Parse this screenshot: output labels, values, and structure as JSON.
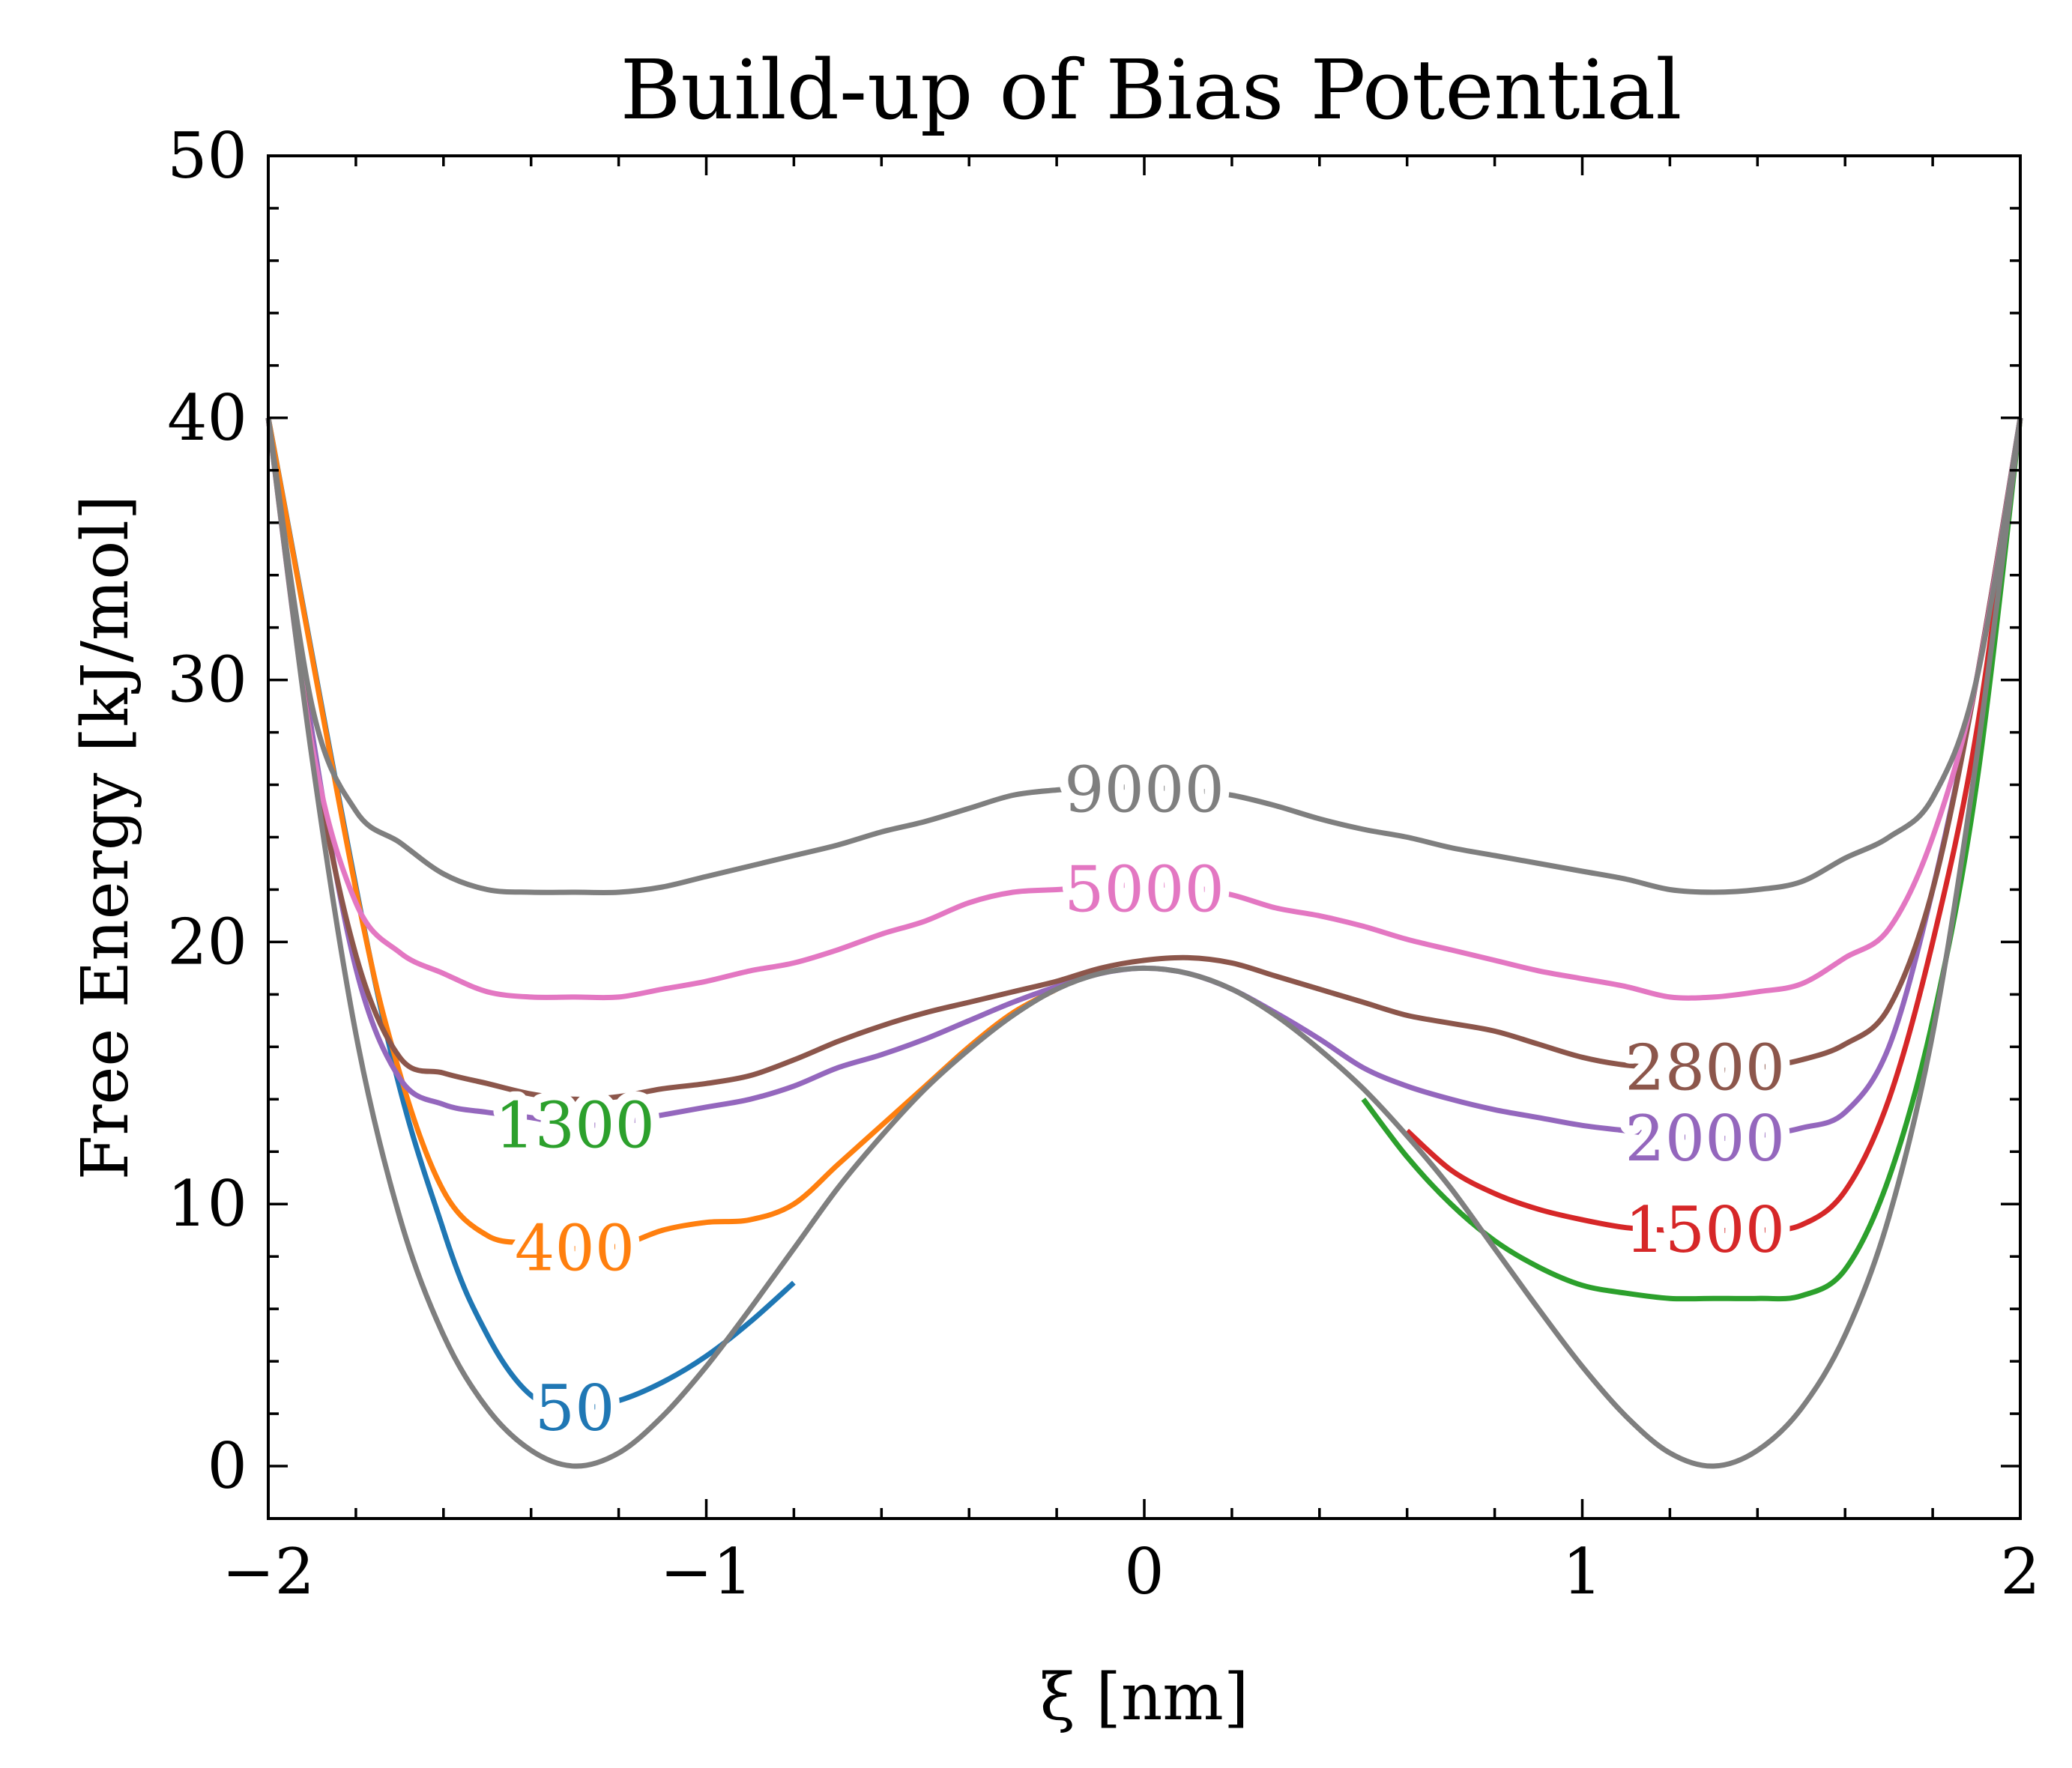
{
  "chart_data": {
    "type": "line",
    "title": "Build-up of Bias Potential",
    "xlabel": "ξ [nm]",
    "ylabel": "Free Energy [kJ/mol]",
    "xlim": [
      -2,
      2
    ],
    "ylim": [
      -2,
      50
    ],
    "xticks": [
      -2,
      -1,
      0,
      1,
      2
    ],
    "xtick_labels": [
      "−2",
      "−1",
      "0",
      "1",
      "2"
    ],
    "yticks": [
      0,
      10,
      20,
      30,
      40,
      50
    ],
    "ytick_labels": [
      "0",
      "10",
      "20",
      "30",
      "40",
      "50"
    ],
    "grid": false,
    "legend": "none",
    "series": [
      {
        "name": "50",
        "color": "#1f77b4",
        "label_at": [
          -1.3,
          2.2
        ],
        "points": [
          [
            -2,
            40
          ],
          [
            -1.75,
            18
          ],
          [
            -1.6,
            9
          ],
          [
            -1.5,
            5
          ],
          [
            -1.4,
            2.7
          ],
          [
            -1.3,
            2.2
          ],
          [
            -1.2,
            2.5
          ],
          [
            -1.1,
            3.2
          ],
          [
            -1.0,
            4.2
          ],
          [
            -0.9,
            5.5
          ],
          [
            -0.8,
            7.0
          ]
        ]
      },
      {
        "name": "400",
        "color": "#ff7f0e",
        "label_at": [
          -1.3,
          8.3
        ],
        "points": [
          [
            -2,
            40
          ],
          [
            -1.8,
            22
          ],
          [
            -1.7,
            15
          ],
          [
            -1.6,
            10.5
          ],
          [
            -1.5,
            8.8
          ],
          [
            -1.4,
            8.5
          ],
          [
            -1.3,
            8.3
          ],
          [
            -1.2,
            8.4
          ],
          [
            -1.1,
            9.0
          ],
          [
            -1.0,
            9.3
          ],
          [
            -0.9,
            9.4
          ],
          [
            -0.8,
            10.0
          ],
          [
            -0.7,
            11.5
          ],
          [
            -0.6,
            13.0
          ],
          [
            -0.5,
            14.5
          ],
          [
            -0.4,
            16.0
          ],
          [
            -0.3,
            17.3
          ],
          [
            -0.2,
            18.2
          ]
        ]
      },
      {
        "name": "1300",
        "color": "#2ca02c",
        "label_at": [
          -1.3,
          13.0
        ],
        "points": [
          [
            0.5,
            14.0
          ],
          [
            0.6,
            11.8
          ],
          [
            0.7,
            10.0
          ],
          [
            0.8,
            8.6
          ],
          [
            0.9,
            7.6
          ],
          [
            1.0,
            6.9
          ],
          [
            1.1,
            6.6
          ],
          [
            1.2,
            6.4
          ],
          [
            1.3,
            6.4
          ],
          [
            1.4,
            6.4
          ],
          [
            1.5,
            6.5
          ],
          [
            1.6,
            7.5
          ],
          [
            1.7,
            11.0
          ],
          [
            1.8,
            17.0
          ],
          [
            1.9,
            26.0
          ],
          [
            2,
            40
          ]
        ]
      },
      {
        "name": "1500",
        "color": "#d62728",
        "label_at": [
          1.28,
          9.0
        ],
        "points": [
          [
            0.6,
            12.8
          ],
          [
            0.7,
            11.3
          ],
          [
            0.8,
            10.4
          ],
          [
            0.9,
            9.8
          ],
          [
            1.0,
            9.4
          ],
          [
            1.1,
            9.1
          ],
          [
            1.2,
            9.0
          ],
          [
            1.3,
            9.0
          ],
          [
            1.4,
            9.0
          ],
          [
            1.5,
            9.2
          ],
          [
            1.6,
            10.5
          ],
          [
            1.7,
            14.0
          ],
          [
            1.8,
            20.0
          ],
          [
            1.9,
            28.0
          ],
          [
            2,
            40
          ]
        ]
      },
      {
        "name": "2000",
        "color": "#9467bd",
        "label_at": [
          1.28,
          12.5
        ],
        "points": [
          [
            -2,
            40
          ],
          [
            -1.9,
            28
          ],
          [
            -1.8,
            19
          ],
          [
            -1.7,
            14.8
          ],
          [
            -1.6,
            13.8
          ],
          [
            -1.5,
            13.5
          ],
          [
            -1.4,
            13.3
          ],
          [
            -1.3,
            13.0
          ],
          [
            -1.2,
            13.1
          ],
          [
            -1.1,
            13.4
          ],
          [
            -1.0,
            13.7
          ],
          [
            -0.9,
            14.0
          ],
          [
            -0.8,
            14.5
          ],
          [
            -0.7,
            15.2
          ],
          [
            -0.6,
            15.7
          ],
          [
            -0.5,
            16.3
          ],
          [
            -0.4,
            17.0
          ],
          [
            -0.3,
            17.7
          ],
          [
            -0.2,
            18.3
          ],
          [
            -0.1,
            18.8
          ],
          [
            0,
            19.0
          ],
          [
            0.1,
            18.8
          ],
          [
            0.2,
            18.2
          ],
          [
            0.3,
            17.3
          ],
          [
            0.4,
            16.3
          ],
          [
            0.5,
            15.2
          ],
          [
            0.6,
            14.5
          ],
          [
            0.7,
            14.0
          ],
          [
            0.8,
            13.6
          ],
          [
            0.9,
            13.3
          ],
          [
            1.0,
            13.0
          ],
          [
            1.1,
            12.8
          ],
          [
            1.2,
            12.6
          ],
          [
            1.3,
            12.5
          ],
          [
            1.4,
            12.6
          ],
          [
            1.5,
            12.9
          ],
          [
            1.6,
            13.5
          ],
          [
            1.7,
            16.0
          ],
          [
            1.8,
            22.0
          ],
          [
            1.9,
            30.0
          ],
          [
            2,
            40
          ]
        ]
      },
      {
        "name": "2800",
        "color": "#8c564b",
        "label_at": [
          1.28,
          15.2
        ],
        "points": [
          [
            -2,
            40
          ],
          [
            -1.9,
            27.5
          ],
          [
            -1.8,
            19.5
          ],
          [
            -1.7,
            15.6
          ],
          [
            -1.6,
            15.0
          ],
          [
            -1.5,
            14.6
          ],
          [
            -1.4,
            14.2
          ],
          [
            -1.3,
            14.0
          ],
          [
            -1.2,
            14.1
          ],
          [
            -1.1,
            14.4
          ],
          [
            -1.0,
            14.6
          ],
          [
            -0.9,
            14.9
          ],
          [
            -0.8,
            15.5
          ],
          [
            -0.7,
            16.2
          ],
          [
            -0.6,
            16.8
          ],
          [
            -0.5,
            17.3
          ],
          [
            -0.4,
            17.7
          ],
          [
            -0.3,
            18.1
          ],
          [
            -0.2,
            18.5
          ],
          [
            -0.1,
            19.0
          ],
          [
            0,
            19.3
          ],
          [
            0.1,
            19.4
          ],
          [
            0.2,
            19.2
          ],
          [
            0.3,
            18.7
          ],
          [
            0.4,
            18.2
          ],
          [
            0.5,
            17.7
          ],
          [
            0.6,
            17.2
          ],
          [
            0.7,
            16.9
          ],
          [
            0.8,
            16.6
          ],
          [
            0.9,
            16.1
          ],
          [
            1.0,
            15.6
          ],
          [
            1.1,
            15.3
          ],
          [
            1.2,
            15.2
          ],
          [
            1.3,
            15.1
          ],
          [
            1.4,
            15.2
          ],
          [
            1.5,
            15.5
          ],
          [
            1.6,
            16.1
          ],
          [
            1.7,
            17.5
          ],
          [
            1.8,
            22.0
          ],
          [
            1.9,
            30.0
          ],
          [
            2,
            40
          ]
        ]
      },
      {
        "name": "5000",
        "color": "#e377c2",
        "label_at": [
          0,
          22.0
        ],
        "points": [
          [
            -2,
            40
          ],
          [
            -1.9,
            27.5
          ],
          [
            -1.8,
            21.5
          ],
          [
            -1.7,
            19.6
          ],
          [
            -1.6,
            18.8
          ],
          [
            -1.5,
            18.1
          ],
          [
            -1.4,
            17.9
          ],
          [
            -1.3,
            17.9
          ],
          [
            -1.2,
            17.9
          ],
          [
            -1.1,
            18.2
          ],
          [
            -1.0,
            18.5
          ],
          [
            -0.9,
            18.9
          ],
          [
            -0.8,
            19.2
          ],
          [
            -0.7,
            19.7
          ],
          [
            -0.6,
            20.3
          ],
          [
            -0.5,
            20.8
          ],
          [
            -0.4,
            21.5
          ],
          [
            -0.3,
            21.9
          ],
          [
            -0.2,
            22.0
          ],
          [
            -0.1,
            22.1
          ],
          [
            0,
            22.2
          ],
          [
            0.1,
            22.1
          ],
          [
            0.2,
            21.8
          ],
          [
            0.3,
            21.3
          ],
          [
            0.4,
            21.0
          ],
          [
            0.5,
            20.6
          ],
          [
            0.6,
            20.1
          ],
          [
            0.7,
            19.7
          ],
          [
            0.8,
            19.3
          ],
          [
            0.9,
            18.9
          ],
          [
            1.0,
            18.6
          ],
          [
            1.1,
            18.3
          ],
          [
            1.2,
            17.9
          ],
          [
            1.3,
            17.9
          ],
          [
            1.4,
            18.1
          ],
          [
            1.5,
            18.4
          ],
          [
            1.6,
            19.4
          ],
          [
            1.7,
            20.5
          ],
          [
            1.8,
            24.0
          ],
          [
            1.9,
            30.0
          ],
          [
            2,
            40
          ]
        ]
      },
      {
        "name": "9000",
        "color": "#7f7f7f",
        "label_at": [
          0,
          25.8
        ],
        "points": [
          [
            -2,
            40
          ],
          [
            -1.9,
            29.0
          ],
          [
            -1.8,
            25.0
          ],
          [
            -1.7,
            23.8
          ],
          [
            -1.6,
            22.6
          ],
          [
            -1.5,
            22.0
          ],
          [
            -1.4,
            21.9
          ],
          [
            -1.3,
            21.9
          ],
          [
            -1.2,
            21.9
          ],
          [
            -1.1,
            22.1
          ],
          [
            -1.0,
            22.5
          ],
          [
            -0.9,
            22.9
          ],
          [
            -0.8,
            23.3
          ],
          [
            -0.7,
            23.7
          ],
          [
            -0.6,
            24.2
          ],
          [
            -0.5,
            24.6
          ],
          [
            -0.4,
            25.1
          ],
          [
            -0.3,
            25.6
          ],
          [
            -0.2,
            25.8
          ],
          [
            -0.1,
            25.9
          ],
          [
            0,
            25.9
          ],
          [
            0.1,
            25.8
          ],
          [
            0.2,
            25.6
          ],
          [
            0.3,
            25.2
          ],
          [
            0.4,
            24.7
          ],
          [
            0.5,
            24.3
          ],
          [
            0.6,
            24.0
          ],
          [
            0.7,
            23.6
          ],
          [
            0.8,
            23.3
          ],
          [
            0.9,
            23.0
          ],
          [
            1.0,
            22.7
          ],
          [
            1.1,
            22.4
          ],
          [
            1.2,
            22.0
          ],
          [
            1.3,
            21.9
          ],
          [
            1.4,
            22.0
          ],
          [
            1.5,
            22.3
          ],
          [
            1.6,
            23.2
          ],
          [
            1.7,
            24.0
          ],
          [
            1.8,
            25.5
          ],
          [
            1.9,
            30.0
          ],
          [
            2,
            40
          ]
        ]
      },
      {
        "name": "",
        "color": "#7f7f7f",
        "role": "underlying free energy profile",
        "points": [
          [
            -2,
            40
          ],
          [
            -1.9,
            27.0
          ],
          [
            -1.8,
            16.5
          ],
          [
            -1.7,
            9.5
          ],
          [
            -1.6,
            5.0
          ],
          [
            -1.5,
            2.2
          ],
          [
            -1.4,
            0.6
          ],
          [
            -1.3,
            0.0
          ],
          [
            -1.2,
            0.5
          ],
          [
            -1.1,
            1.9
          ],
          [
            -1.0,
            3.8
          ],
          [
            -0.9,
            6.0
          ],
          [
            -0.8,
            8.3
          ],
          [
            -0.7,
            10.6
          ],
          [
            -0.6,
            12.6
          ],
          [
            -0.5,
            14.4
          ],
          [
            -0.4,
            15.9
          ],
          [
            -0.3,
            17.2
          ],
          [
            -0.2,
            18.2
          ],
          [
            -0.1,
            18.8
          ],
          [
            0,
            19.0
          ],
          [
            0.1,
            18.8
          ],
          [
            0.2,
            18.2
          ],
          [
            0.3,
            17.2
          ],
          [
            0.4,
            15.9
          ],
          [
            0.5,
            14.4
          ],
          [
            0.6,
            12.6
          ],
          [
            0.7,
            10.6
          ],
          [
            0.8,
            8.3
          ],
          [
            0.9,
            6.0
          ],
          [
            1.0,
            3.8
          ],
          [
            1.1,
            1.9
          ],
          [
            1.2,
            0.5
          ],
          [
            1.3,
            0.0
          ],
          [
            1.4,
            0.6
          ],
          [
            1.5,
            2.2
          ],
          [
            1.6,
            5.0
          ],
          [
            1.7,
            9.5
          ],
          [
            1.8,
            16.5
          ],
          [
            1.9,
            27.0
          ],
          [
            2,
            40
          ]
        ]
      }
    ]
  }
}
